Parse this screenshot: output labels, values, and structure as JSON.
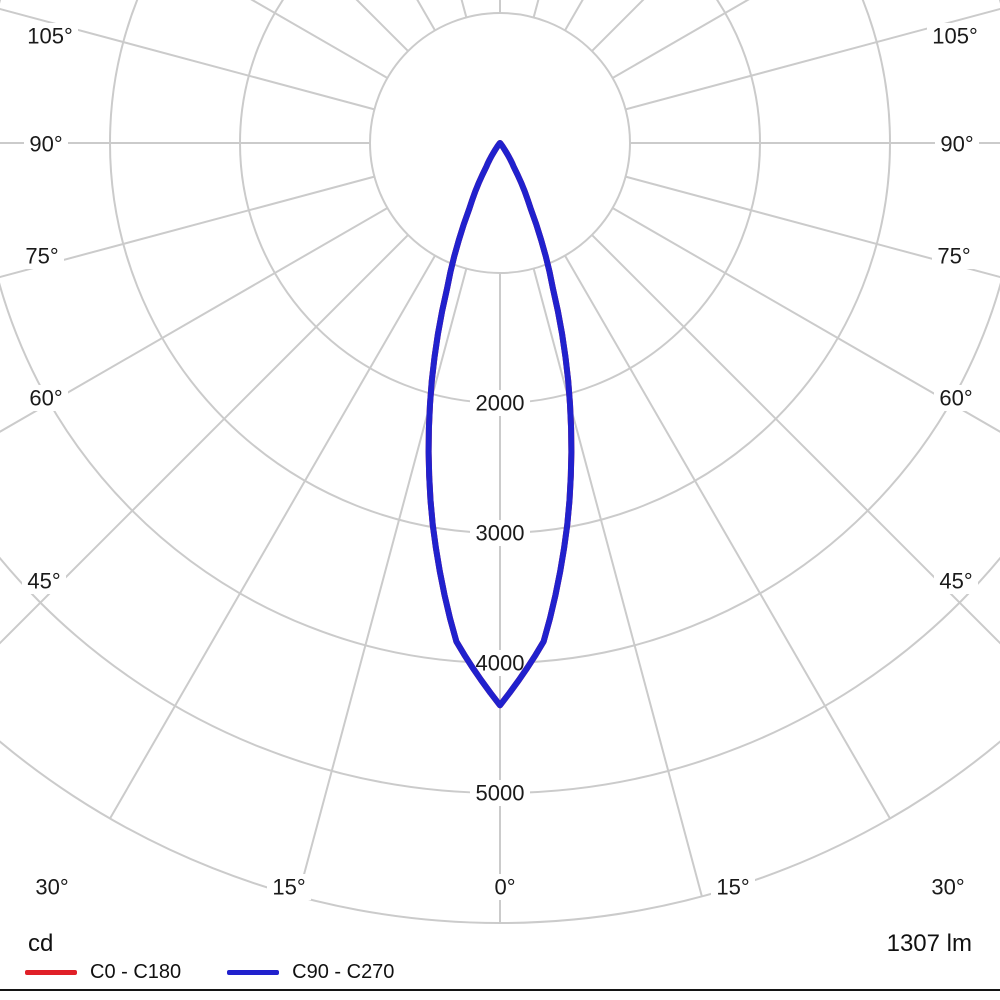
{
  "figure": {
    "kind": "luminous intensity distribution polar diagram"
  },
  "footer": {
    "unit": "cd",
    "flux": "1307 lm"
  },
  "legend": {
    "items": [
      {
        "label": "C0 - C180",
        "color": "#e02028"
      },
      {
        "label": "C90 - C270",
        "color": "#2121cd"
      }
    ]
  },
  "chart_data": {
    "type": "polar",
    "subtype": "photometric-intensity-distribution",
    "unit": "cd",
    "luminous_flux_label": "1307 lm",
    "grid_color": "#cbcbcb",
    "text_color": "#1a1a1a",
    "grid": true,
    "legend_position": "bottom-left",
    "angle_step_deg": 15,
    "angle_labels": [
      {
        "deg": 0,
        "text": "0°"
      },
      {
        "deg": 15,
        "text": "15°"
      },
      {
        "deg": 30,
        "text": "30°"
      },
      {
        "deg": 45,
        "text": "45°"
      },
      {
        "deg": 60,
        "text": "60°"
      },
      {
        "deg": 75,
        "text": "75°"
      },
      {
        "deg": 90,
        "text": "90°"
      },
      {
        "deg": 105,
        "text": "105°"
      }
    ],
    "ring_step_cd": 1000,
    "ring_max_cd": 6000,
    "ring_labels_cd": [
      2000,
      3000,
      4000,
      5000
    ],
    "series": [
      {
        "name": "C0 - C180",
        "color": "#e02028",
        "angles_deg": [
          0,
          5,
          10,
          15,
          20,
          25,
          30,
          35,
          40,
          45,
          90
        ],
        "intensity_cd": [
          4325,
          3850,
          2980,
          2080,
          1190,
          560,
          210,
          60,
          10,
          0,
          0
        ]
      },
      {
        "name": "C90 - C270",
        "color": "#2121cd",
        "angles_deg": [
          0,
          5,
          10,
          15,
          20,
          25,
          30,
          35,
          40,
          45,
          90
        ],
        "intensity_cd": [
          4325,
          3850,
          2980,
          2080,
          1190,
          560,
          210,
          60,
          10,
          0,
          0
        ]
      }
    ]
  }
}
